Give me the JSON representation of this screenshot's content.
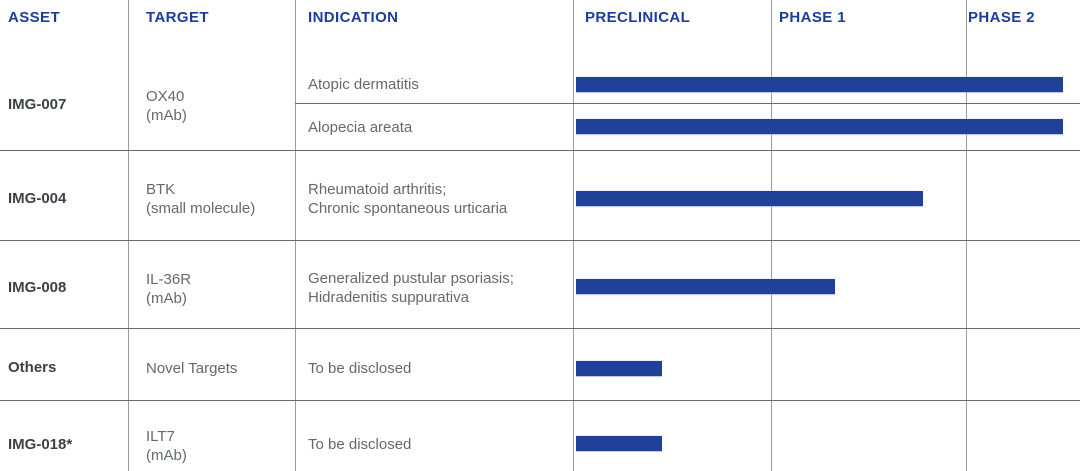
{
  "colors": {
    "accent_blue": "#21409a",
    "header_blue": "#1d3d98",
    "asset_text": "#3e4145",
    "body_text": "#65686d",
    "grid_vertical": "#9b9b9b",
    "grid_horizontal": "#66696d"
  },
  "table": {
    "headers": [
      "ASSET",
      "TARGET",
      "INDICATION",
      "PRECLINICAL",
      "PHASE 1",
      "PHASE 2"
    ],
    "rows": [
      {
        "asset": "IMG-007",
        "target": "OX40\n(mAb)",
        "indications": [
          "Atopic dermatitis",
          "Alopecia areata"
        ]
      },
      {
        "asset": "IMG-004",
        "target": "BTK\n(small molecule)",
        "indication": "Rheumatoid arthritis;\nChronic spontaneous urticaria"
      },
      {
        "asset": "IMG-008",
        "target": "IL-36R\n(mAb)",
        "indication": "Generalized pustular psoriasis;\nHidradenitis suppurativa"
      },
      {
        "asset": "Others",
        "target": "Novel Targets",
        "indication": "To be disclosed"
      },
      {
        "asset": "IMG-018*",
        "target": "ILT7\n(mAb)",
        "indication": "To be disclosed"
      }
    ]
  },
  "chart_data": {
    "type": "bar",
    "title": "Drug development pipeline phase progress",
    "phase_columns": [
      "PRECLINICAL",
      "PHASE 1",
      "PHASE 2"
    ],
    "progress_units_note": "0 = start of Preclinical, 1 = end of Preclinical, 2 = end of Phase 1, 3 = end of Phase 2",
    "bar_color": "#21409a",
    "bars": [
      {
        "asset": "IMG-007",
        "target": "OX40 (mAb)",
        "indication": "Atopic dermatitis",
        "progress": 2.85
      },
      {
        "asset": "IMG-007",
        "target": "OX40 (mAb)",
        "indication": "Alopecia areata",
        "progress": 2.85
      },
      {
        "asset": "IMG-004",
        "target": "BTK (small molecule)",
        "indication": "Rheumatoid arthritis; Chronic spontaneous urticaria",
        "progress": 1.78
      },
      {
        "asset": "IMG-008",
        "target": "IL-36R (mAb)",
        "indication": "Generalized pustular psoriasis; Hidradenitis suppurativa",
        "progress": 1.33
      },
      {
        "asset": "Others",
        "target": "Novel Targets",
        "indication": "To be disclosed",
        "progress": 0.45
      },
      {
        "asset": "IMG-018*",
        "target": "ILT7 (mAb)",
        "indication": "To be disclosed",
        "progress": 0.45
      }
    ]
  }
}
